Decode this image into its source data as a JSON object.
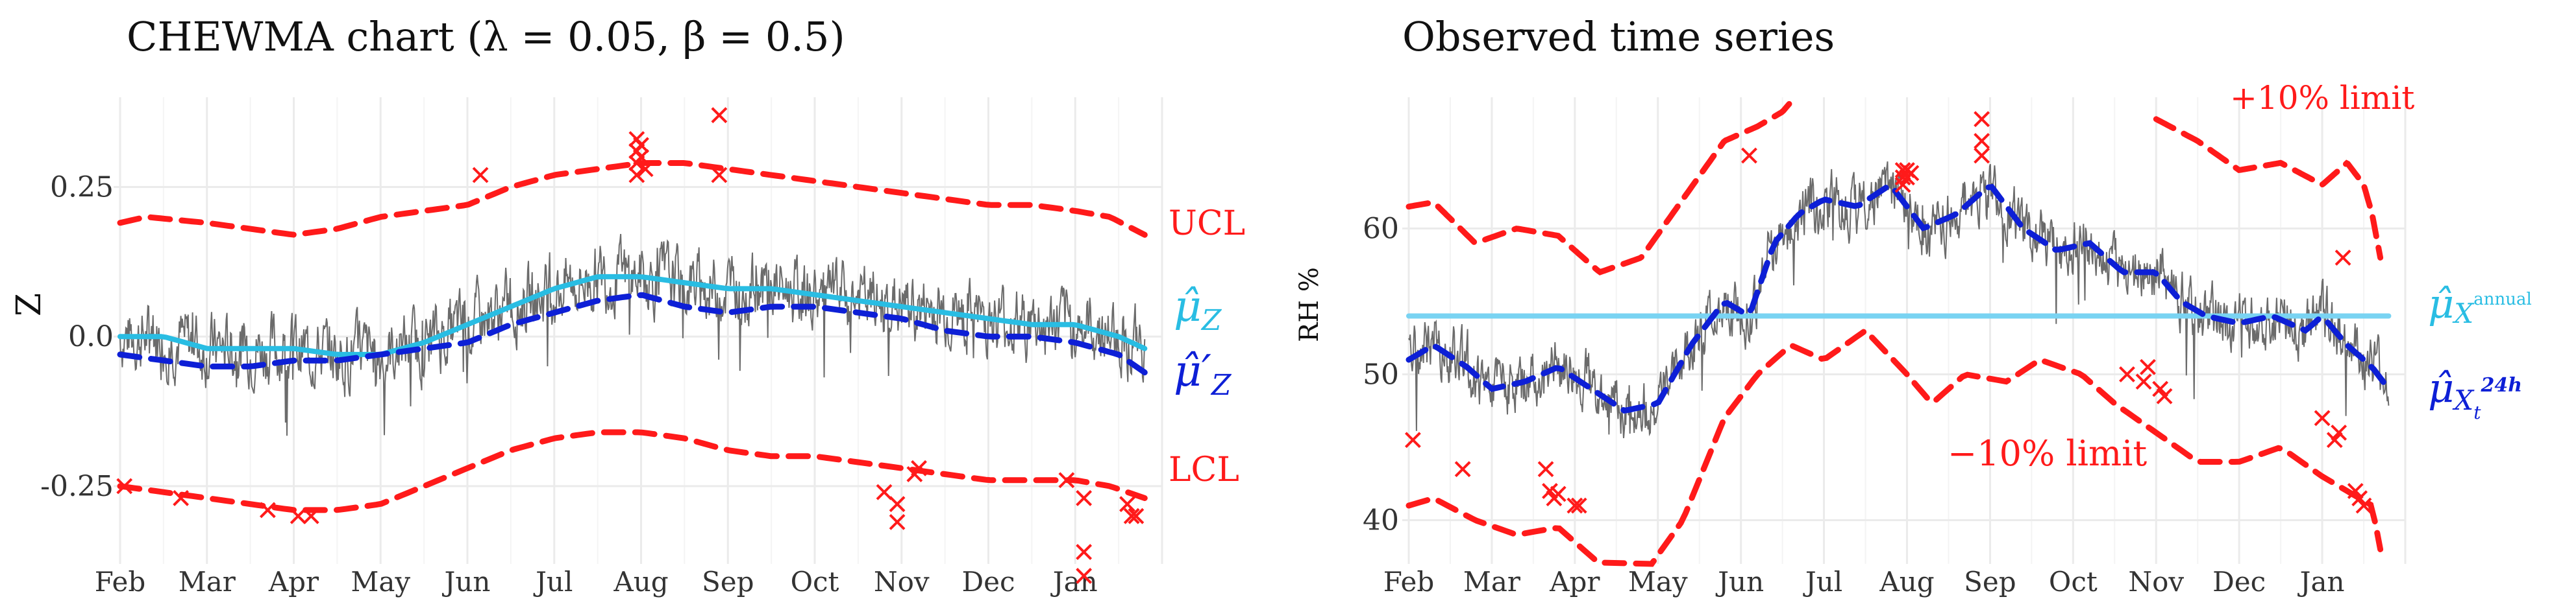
{
  "chart_data": [
    {
      "type": "line",
      "title": "CHEWMA chart (λ = 0.05, β = 0.5)",
      "xlabel": "",
      "ylabel": "Z",
      "x_ticks": [
        "Feb",
        "Mar",
        "Apr",
        "May",
        "Jun",
        "Jul",
        "Aug",
        "Sep",
        "Oct",
        "Nov",
        "Dec",
        "Jan"
      ],
      "xlim": [
        0,
        12
      ],
      "ylim": [
        -0.38,
        0.4
      ],
      "y_ticks": [
        0.25,
        0.0,
        -0.25
      ],
      "y_tick_labels": [
        "0.25",
        "0.0",
        "-0.25"
      ],
      "grid": true,
      "series": [
        {
          "name": "UCL",
          "color": "#ff1a1a",
          "style": "dashed",
          "x": [
            0,
            0.3,
            1,
            1.5,
            2,
            2.5,
            3,
            3.5,
            4,
            4.5,
            5,
            5.5,
            6,
            6.5,
            7,
            7.5,
            8,
            8.5,
            9,
            9.5,
            10,
            10.5,
            11,
            11.4,
            11.8
          ],
          "values": [
            0.19,
            0.2,
            0.19,
            0.18,
            0.17,
            0.18,
            0.2,
            0.21,
            0.22,
            0.25,
            0.27,
            0.28,
            0.29,
            0.29,
            0.28,
            0.27,
            0.26,
            0.25,
            0.24,
            0.23,
            0.22,
            0.22,
            0.21,
            0.2,
            0.17
          ]
        },
        {
          "name": "LCL",
          "color": "#ff1a1a",
          "style": "dashed",
          "x": [
            0,
            0.5,
            1,
            1.5,
            2,
            2.5,
            3,
            3.5,
            4,
            4.5,
            5,
            5.5,
            6,
            6.5,
            7,
            7.5,
            8,
            8.5,
            9,
            9.5,
            10,
            10.5,
            11,
            11.4,
            11.8
          ],
          "values": [
            -0.25,
            -0.26,
            -0.27,
            -0.28,
            -0.29,
            -0.29,
            -0.28,
            -0.25,
            -0.22,
            -0.19,
            -0.17,
            -0.16,
            -0.16,
            -0.17,
            -0.19,
            -0.2,
            -0.2,
            -0.21,
            -0.22,
            -0.23,
            -0.24,
            -0.24,
            -0.24,
            -0.25,
            -0.27
          ]
        },
        {
          "name": "mu_Z",
          "label": "μ̂_Z",
          "color": "#29bde3",
          "style": "solid",
          "x": [
            0,
            0.5,
            1,
            1.5,
            2,
            2.5,
            3,
            3.5,
            4,
            4.5,
            5,
            5.5,
            6,
            6.5,
            7,
            7.5,
            8,
            8.5,
            9,
            9.5,
            10,
            10.5,
            11,
            11.5,
            11.8
          ],
          "values": [
            0.0,
            0.0,
            -0.02,
            -0.02,
            -0.02,
            -0.03,
            -0.03,
            -0.01,
            0.02,
            0.05,
            0.08,
            0.1,
            0.1,
            0.09,
            0.08,
            0.08,
            0.07,
            0.06,
            0.05,
            0.04,
            0.03,
            0.02,
            0.02,
            0.0,
            -0.02
          ]
        },
        {
          "name": "mu_Z_prime",
          "label": "μ̂′_Z",
          "color": "#0d1fd6",
          "style": "dashed",
          "x": [
            0,
            0.5,
            1,
            1.5,
            2,
            2.5,
            3,
            3.5,
            4,
            4.5,
            5,
            5.5,
            6,
            6.5,
            7,
            7.5,
            8,
            8.5,
            9,
            9.5,
            10,
            10.5,
            11,
            11.5,
            11.8
          ],
          "values": [
            -0.03,
            -0.04,
            -0.05,
            -0.05,
            -0.04,
            -0.04,
            -0.03,
            -0.02,
            -0.01,
            0.02,
            0.04,
            0.06,
            0.07,
            0.05,
            0.04,
            0.05,
            0.05,
            0.04,
            0.03,
            0.01,
            0.0,
            0.0,
            -0.01,
            -0.03,
            -0.06
          ]
        }
      ],
      "observed": {
        "name": "Z",
        "color": "#6b6b6b",
        "x_start": 0,
        "x_end": 11.8,
        "amplitude": 0.1,
        "trend": "mu_Z"
      },
      "outliers": {
        "color": "#ff1a1a",
        "x": [
          0.05,
          0.7,
          1.7,
          2.05,
          2.2,
          4.15,
          5.95,
          5.95,
          5.95,
          5.95,
          6.0,
          6.0,
          6.05,
          6.9,
          6.9,
          8.8,
          8.95,
          8.95,
          9.15,
          9.2,
          10.9,
          11.1,
          11.1,
          11.1,
          11.6,
          11.65,
          11.7
        ],
        "values": [
          -0.25,
          -0.27,
          -0.29,
          -0.3,
          -0.3,
          0.27,
          0.33,
          0.31,
          0.29,
          0.27,
          0.32,
          0.3,
          0.28,
          0.37,
          0.27,
          -0.26,
          -0.28,
          -0.31,
          -0.23,
          -0.22,
          -0.24,
          -0.27,
          -0.4,
          -0.36,
          -0.28,
          -0.3,
          -0.3
        ]
      },
      "annotations": [
        {
          "text": "UCL",
          "color": "#ff1a1a"
        },
        {
          "text": "LCL",
          "color": "#ff1a1a"
        }
      ]
    },
    {
      "type": "line",
      "title": "Observed time series",
      "xlabel": "",
      "ylabel": "RH %",
      "x_ticks": [
        "Feb",
        "Mar",
        "Apr",
        "May",
        "Jun",
        "Jul",
        "Aug",
        "Sep",
        "Oct",
        "Nov",
        "Dec",
        "Jan"
      ],
      "xlim": [
        0,
        12
      ],
      "ylim": [
        37,
        69
      ],
      "y_ticks": [
        60,
        50,
        40
      ],
      "y_tick_labels": [
        "60",
        "50",
        "40"
      ],
      "grid": true,
      "series": [
        {
          "name": "plus10",
          "label": "+10% limit",
          "color": "#ff1a1a",
          "style": "dashed",
          "x": [
            0,
            0.3,
            0.8,
            1.3,
            1.8,
            2.3,
            2.8,
            3.3,
            3.8,
            4.2,
            4.5,
            4.8
          ],
          "values": [
            61.5,
            61.8,
            59,
            60,
            59.5,
            57,
            58,
            62,
            66,
            67,
            68,
            70
          ]
        },
        {
          "name": "plus10_b",
          "color": "#ff1a1a",
          "style": "dashed",
          "x": [
            9.0,
            9.5,
            10,
            10.5,
            11,
            11.3,
            11.5,
            11.6,
            11.7
          ],
          "values": [
            67.5,
            66,
            64,
            64.5,
            63,
            64.5,
            63,
            61,
            58
          ]
        },
        {
          "name": "minus10",
          "label": "−10% limit",
          "color": "#ff1a1a",
          "style": "dashed",
          "x": [
            0,
            0.3,
            0.8,
            1.3,
            1.8,
            2.3,
            2.8,
            3.3,
            3.8,
            4.2,
            4.6,
            5,
            5.5,
            6,
            6.3,
            6.7,
            7.2,
            7.6,
            8.1,
            8.5,
            9,
            9.5,
            10,
            10.5,
            11,
            11.3,
            11.6,
            11.7
          ],
          "values": [
            41,
            41.5,
            40,
            39,
            39.5,
            37,
            36,
            40,
            47,
            50,
            52,
            51,
            53,
            50,
            48,
            50,
            49.5,
            51,
            50,
            48,
            46,
            44,
            44,
            45,
            43,
            42,
            41,
            38
          ]
        },
        {
          "name": "mu_annual",
          "label": "μ̂_X^annual",
          "color": "#79d3f2",
          "style": "solid",
          "x": [
            0,
            11.8
          ],
          "values": [
            54,
            54
          ]
        },
        {
          "name": "mu_24h",
          "label": "μ̂_X_t^24h",
          "color": "#0d1fd6",
          "style": "dashed",
          "x": [
            0,
            0.3,
            0.7,
            1.0,
            1.4,
            1.8,
            2.2,
            2.6,
            3.0,
            3.4,
            3.8,
            4.1,
            4.4,
            4.7,
            5.0,
            5.4,
            5.8,
            6.2,
            6.6,
            7.0,
            7.4,
            7.8,
            8.2,
            8.6,
            9.0,
            9.3,
            9.6,
            10,
            10.4,
            10.8,
            11.0,
            11.3,
            11.6,
            11.8
          ],
          "values": [
            51,
            52,
            50.5,
            49,
            49.5,
            50.5,
            49,
            47.5,
            48,
            52,
            55,
            54,
            59,
            61,
            62,
            61.5,
            63,
            60,
            61,
            63,
            60,
            58.5,
            59,
            57,
            57,
            55,
            54,
            53.5,
            54,
            53,
            54,
            52,
            50.5,
            49
          ]
        }
      ],
      "observed": {
        "name": "RH",
        "color": "#6b6b6b",
        "x_start": 0,
        "x_end": 11.8,
        "amplitude": 3.5,
        "trend": "mu_24h"
      },
      "outliers": {
        "color": "#ff1a1a",
        "x": [
          0.05,
          0.65,
          1.65,
          1.7,
          1.75,
          1.8,
          2.0,
          2.05,
          4.1,
          5.95,
          5.95,
          5.95,
          6.0,
          6.0,
          6.05,
          6.9,
          6.9,
          6.9,
          8.65,
          8.85,
          8.9,
          9.05,
          9.1,
          11.0,
          11.15,
          11.2,
          11.25,
          11.4,
          11.45,
          11.5
        ],
        "values": [
          45.5,
          43.5,
          43.5,
          42,
          41.5,
          41.8,
          41,
          41,
          65,
          64,
          63.5,
          63,
          64,
          63.5,
          63.8,
          67.5,
          66,
          65,
          50,
          49.5,
          50.5,
          49,
          48.5,
          47,
          45.5,
          46,
          58,
          42,
          41.5,
          41
        ]
      }
    }
  ],
  "legend_right_left": {
    "ucl": "UCL",
    "lcl": "LCL",
    "mu_z": "μ̂",
    "mu_z_sub": "Z",
    "mu_zp": "μ̂′",
    "mu_zp_sub": "Z"
  },
  "legend_right_right": {
    "plus10": "+10% limit",
    "minus10": "−10% limit",
    "mu_annual": "μ̂",
    "mu_annual_sub": "X",
    "mu_annual_sup": "annual",
    "mu_24h": "μ̂",
    "mu_24h_sub": "X",
    "mu_24h_subsub": "t",
    "mu_24h_sup": "24h"
  }
}
